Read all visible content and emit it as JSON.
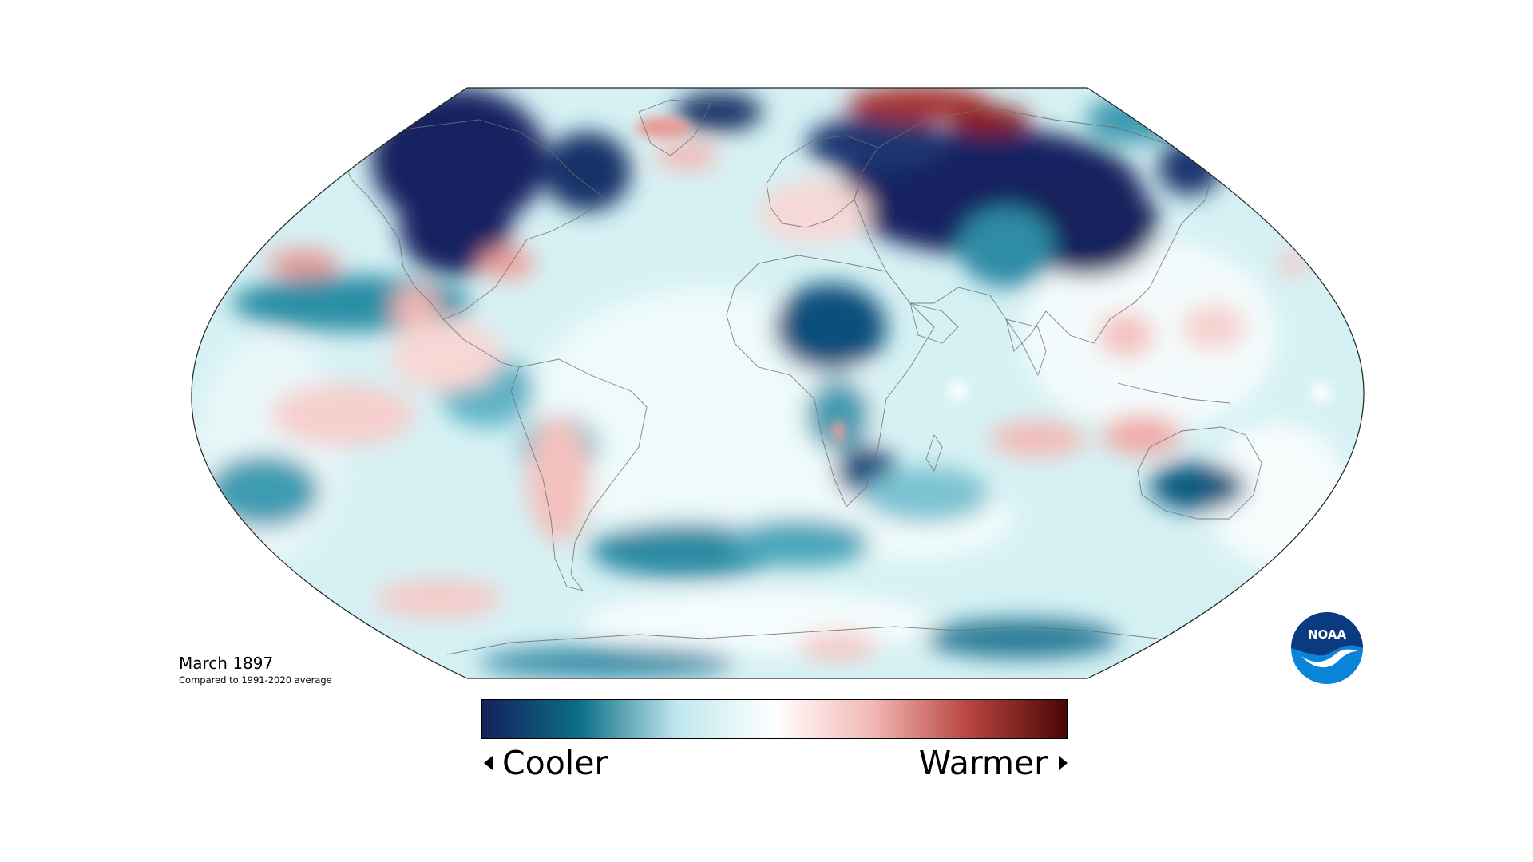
{
  "map": {
    "caption_title": "March 1897",
    "caption_subtitle": "Compared to 1991-2020 average",
    "projection": "Robinson",
    "variable": "temperature anomaly"
  },
  "legend": {
    "cooler_label": "Cooler",
    "warmer_label": "Warmer",
    "colors": [
      "#14205a",
      "#0b6f88",
      "#bfe7ee",
      "#ffffff",
      "#f2b8b5",
      "#b8433f",
      "#4a0605"
    ]
  },
  "logo": {
    "text": "NOAA",
    "colors": {
      "dark": "#0b3a80",
      "light": "#0a84d9"
    }
  }
}
